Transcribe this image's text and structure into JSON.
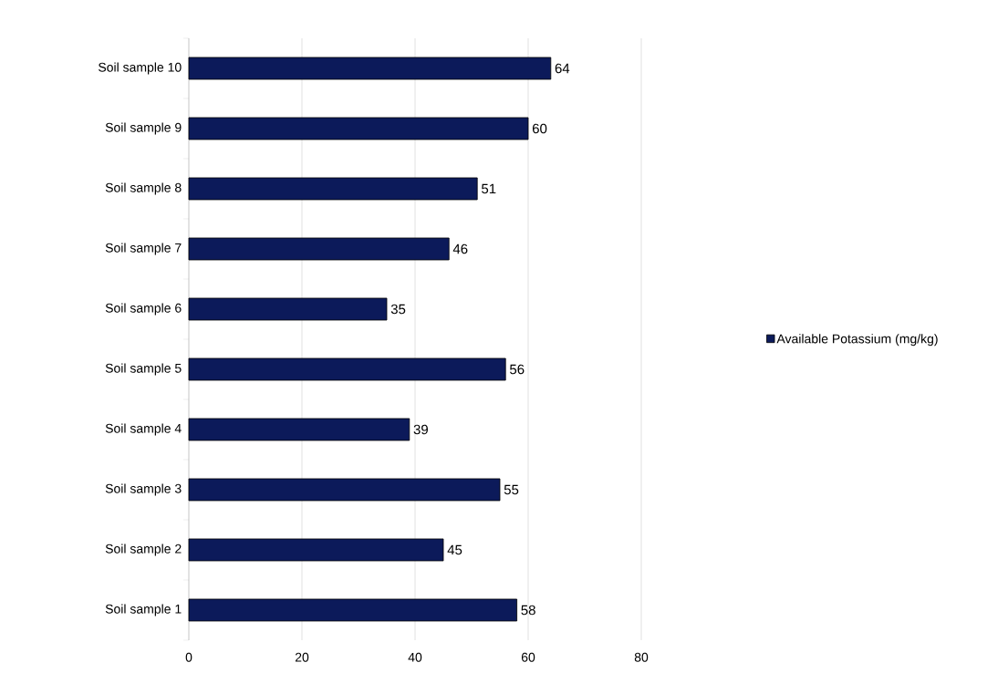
{
  "chart_data": {
    "type": "bar",
    "orientation": "horizontal",
    "categories": [
      "Soil sample 10",
      "Soil sample 9",
      "Soil sample 8",
      "Soil sample 7",
      "Soil sample 6",
      "Soil sample 5",
      "Soil sample 4",
      "Soil sample 3",
      "Soil sample 2",
      "Soil sample 1"
    ],
    "series": [
      {
        "name": "Available Potassium (mg/kg)",
        "color": "#0c1a5a",
        "values": [
          64,
          60,
          51,
          46,
          35,
          56,
          39,
          55,
          45,
          58
        ]
      }
    ],
    "xlim": [
      0,
      80
    ],
    "xticks": [
      0,
      20,
      40,
      60,
      80
    ],
    "grid": "x",
    "legend": "right",
    "data_labels": true
  }
}
